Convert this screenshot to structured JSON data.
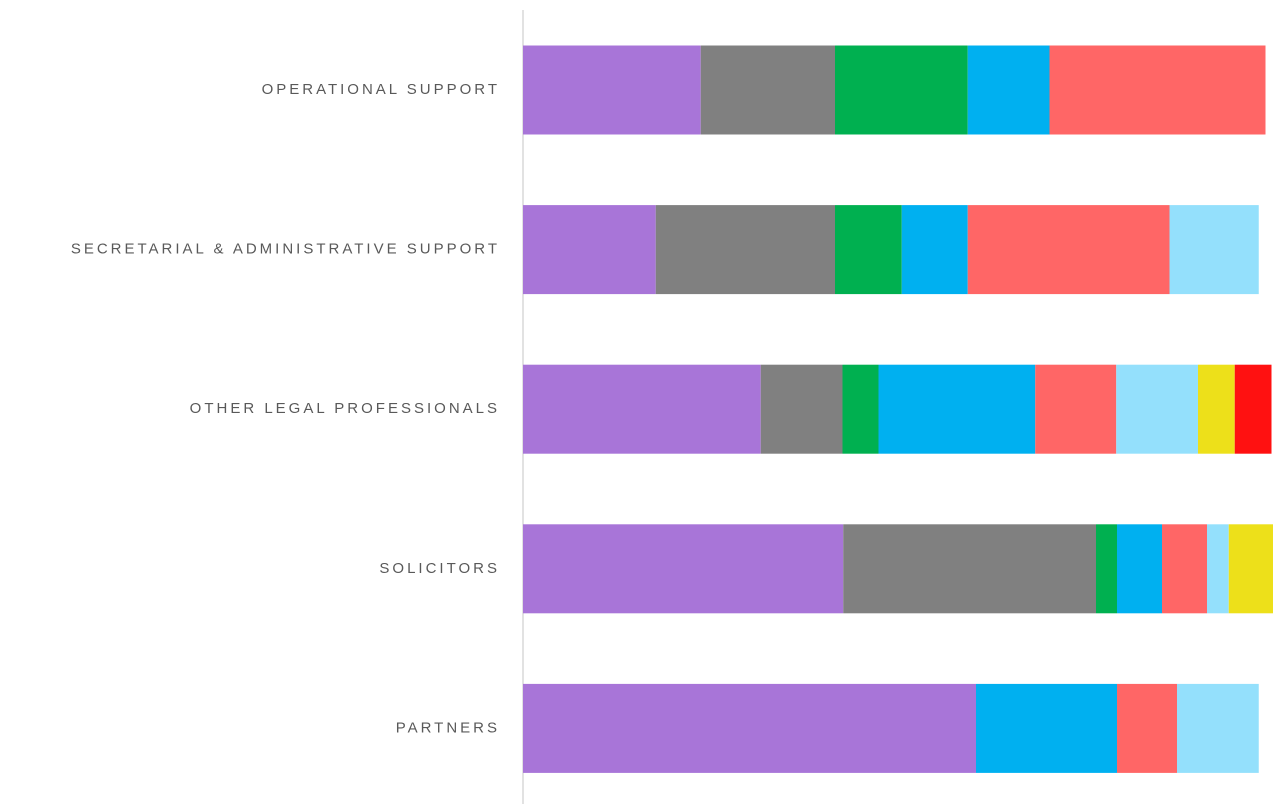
{
  "chart_data": {
    "type": "stacked-bar-horizontal",
    "categories": [
      "OPERATIONAL SUPPORT",
      "SECRETARIAL & ADMINISTRATIVE SUPPORT",
      "OTHER LEGAL PROFESSIONALS",
      "SOLICITORS",
      "PARTNERS"
    ],
    "xlim": [
      0,
      100
    ],
    "series": [
      {
        "color": "#a875d8",
        "values": [
          23.7,
          17.7,
          31.7,
          42.7,
          60.4
        ]
      },
      {
        "color": "#808080",
        "values": [
          17.9,
          23.9,
          10.9,
          33.7,
          0
        ]
      },
      {
        "color": "#00b050",
        "values": [
          17.7,
          8.9,
          4.8,
          2.8,
          0
        ]
      },
      {
        "color": "#00b0f0",
        "values": [
          10.9,
          8.8,
          20.9,
          6,
          18.8
        ]
      },
      {
        "color": "#ff6666",
        "values": [
          28.8,
          26.9,
          10.8,
          6,
          8
        ]
      },
      {
        "color": "#94e0fc",
        "values": [
          0,
          11.9,
          10.9,
          2.9,
          10.9
        ]
      },
      {
        "color": "#ede01a",
        "values": [
          0,
          0,
          4.9,
          5.9,
          0
        ]
      },
      {
        "color": "#ff1111",
        "values": [
          0,
          0,
          4.9,
          0,
          0
        ]
      }
    ]
  }
}
